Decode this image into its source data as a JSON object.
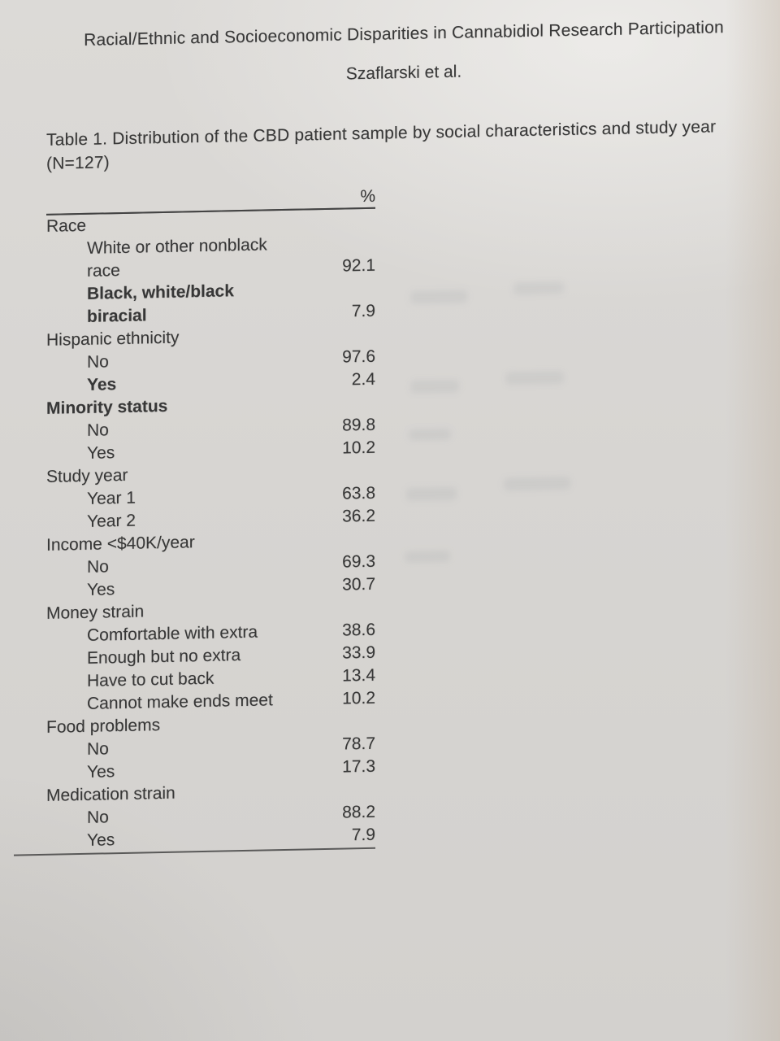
{
  "header": {
    "title": "Racial/Ethnic and Socioeconomic Disparities in Cannabidiol Research Participation",
    "author": "Szaflarski et al."
  },
  "table": {
    "caption_line1": "Table 1. Distribution of the CBD patient sample by social characteristics and study year",
    "caption_line2": "(N=127)",
    "value_header": "%",
    "rows": [
      {
        "label": "Race",
        "indent": 0,
        "bold": false,
        "value": ""
      },
      {
        "label": "White or other nonblack race",
        "indent": 1,
        "bold": false,
        "value": "92.1"
      },
      {
        "label": "Black, white/black biracial",
        "indent": 1,
        "bold": true,
        "value": "7.9"
      },
      {
        "label": "Hispanic ethnicity",
        "indent": 0,
        "bold": false,
        "value": ""
      },
      {
        "label": "No",
        "indent": 1,
        "bold": false,
        "value": "97.6"
      },
      {
        "label": "Yes",
        "indent": 1,
        "bold": true,
        "value": "2.4"
      },
      {
        "label": "Minority status",
        "indent": 0,
        "bold": true,
        "value": ""
      },
      {
        "label": "No",
        "indent": 1,
        "bold": false,
        "value": "89.8"
      },
      {
        "label": "Yes",
        "indent": 1,
        "bold": false,
        "value": "10.2"
      },
      {
        "label": "Study year",
        "indent": 0,
        "bold": false,
        "value": ""
      },
      {
        "label": "Year 1",
        "indent": 1,
        "bold": false,
        "value": "63.8"
      },
      {
        "label": "Year 2",
        "indent": 1,
        "bold": false,
        "value": "36.2"
      },
      {
        "label": "Income <$40K/year",
        "indent": 0,
        "bold": false,
        "value": ""
      },
      {
        "label": "No",
        "indent": 1,
        "bold": false,
        "value": "69.3"
      },
      {
        "label": "Yes",
        "indent": 1,
        "bold": false,
        "value": "30.7"
      },
      {
        "label": "Money strain",
        "indent": 0,
        "bold": false,
        "value": ""
      },
      {
        "label": "Comfortable with extra",
        "indent": 1,
        "bold": false,
        "value": "38.6"
      },
      {
        "label": "Enough but no extra",
        "indent": 1,
        "bold": false,
        "value": "33.9"
      },
      {
        "label": "Have to cut back",
        "indent": 1,
        "bold": false,
        "value": "13.4"
      },
      {
        "label": "Cannot make ends meet",
        "indent": 1,
        "bold": false,
        "value": "10.2"
      },
      {
        "label": "Food problems",
        "indent": 0,
        "bold": false,
        "value": ""
      },
      {
        "label": "No",
        "indent": 1,
        "bold": false,
        "value": "78.7"
      },
      {
        "label": "Yes",
        "indent": 1,
        "bold": false,
        "value": "17.3"
      },
      {
        "label": "Medication strain",
        "indent": 0,
        "bold": false,
        "value": ""
      },
      {
        "label": "No",
        "indent": 1,
        "bold": false,
        "value": "88.2"
      },
      {
        "label": "Yes",
        "indent": 1,
        "bold": false,
        "value": "7.9"
      }
    ]
  }
}
